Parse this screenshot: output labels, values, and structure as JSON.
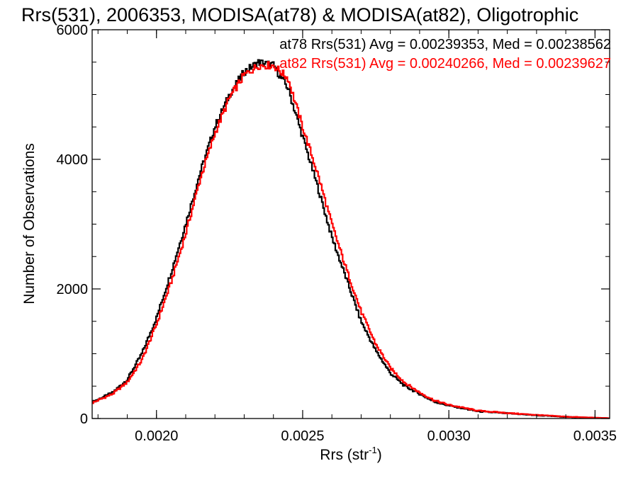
{
  "chart_data": {
    "type": "line",
    "title": "Rrs(531), 2006353, MODISA(at78) & MODISA(at82), Oligotrophic",
    "xlabel_main": "Rrs (str",
    "xlabel_sup": "-1",
    "xlabel_close": ")",
    "ylabel": "Number of Observations",
    "xlim": [
      0.00178,
      0.00355
    ],
    "ylim": [
      0,
      6000
    ],
    "x_ticks": [
      0.002,
      0.0025,
      0.003,
      0.0035
    ],
    "x_tick_labels": [
      "0.0020",
      "0.0025",
      "0.0030",
      "0.0035"
    ],
    "y_ticks": [
      0,
      2000,
      4000,
      6000
    ],
    "y_tick_labels": [
      "0",
      "2000",
      "4000",
      "6000"
    ],
    "grid": false,
    "legend_position": "top-right",
    "series": [
      {
        "name": "at78 Rrs(531) Avg = 0.00239353, Med = 0.00238562",
        "color": "#000000",
        "mean": 0.00239353,
        "points": [
          [
            0.00178,
            250
          ],
          [
            0.00185,
            400
          ],
          [
            0.0019,
            600
          ],
          [
            0.00195,
            1000
          ],
          [
            0.002,
            1550
          ],
          [
            0.00205,
            2250
          ],
          [
            0.0021,
            3000
          ],
          [
            0.00215,
            3800
          ],
          [
            0.0022,
            4500
          ],
          [
            0.00225,
            5000
          ],
          [
            0.0023,
            5350
          ],
          [
            0.00235,
            5500
          ],
          [
            0.0024,
            5450
          ],
          [
            0.00245,
            5100
          ],
          [
            0.0025,
            4350
          ],
          [
            0.00255,
            3600
          ],
          [
            0.0026,
            2800
          ],
          [
            0.00265,
            2150
          ],
          [
            0.0027,
            1500
          ],
          [
            0.00275,
            1050
          ],
          [
            0.0028,
            700
          ],
          [
            0.00285,
            500
          ],
          [
            0.0029,
            380
          ],
          [
            0.00295,
            260
          ],
          [
            0.003,
            200
          ],
          [
            0.0031,
            110
          ],
          [
            0.0032,
            80
          ],
          [
            0.0033,
            50
          ],
          [
            0.0034,
            25
          ],
          [
            0.0035,
            10
          ],
          [
            0.00355,
            5
          ]
        ]
      },
      {
        "name": "at82 Rrs(531) Avg = 0.00240266, Med = 0.00239627",
        "color": "#ff0000",
        "mean": 0.00240266,
        "points": [
          [
            0.00178,
            240
          ],
          [
            0.00185,
            380
          ],
          [
            0.0019,
            560
          ],
          [
            0.00195,
            900
          ],
          [
            0.002,
            1450
          ],
          [
            0.00205,
            2100
          ],
          [
            0.0021,
            2850
          ],
          [
            0.00215,
            3700
          ],
          [
            0.0022,
            4400
          ],
          [
            0.00225,
            4950
          ],
          [
            0.0023,
            5300
          ],
          [
            0.00235,
            5450
          ],
          [
            0.0024,
            5450
          ],
          [
            0.00245,
            5250
          ],
          [
            0.0025,
            4500
          ],
          [
            0.00255,
            3800
          ],
          [
            0.0026,
            3000
          ],
          [
            0.00265,
            2300
          ],
          [
            0.0027,
            1650
          ],
          [
            0.00275,
            1150
          ],
          [
            0.0028,
            780
          ],
          [
            0.00285,
            550
          ],
          [
            0.0029,
            400
          ],
          [
            0.00295,
            280
          ],
          [
            0.003,
            210
          ],
          [
            0.0031,
            120
          ],
          [
            0.0032,
            85
          ],
          [
            0.0033,
            55
          ],
          [
            0.0034,
            28
          ],
          [
            0.0035,
            12
          ],
          [
            0.00355,
            5
          ]
        ]
      }
    ]
  }
}
